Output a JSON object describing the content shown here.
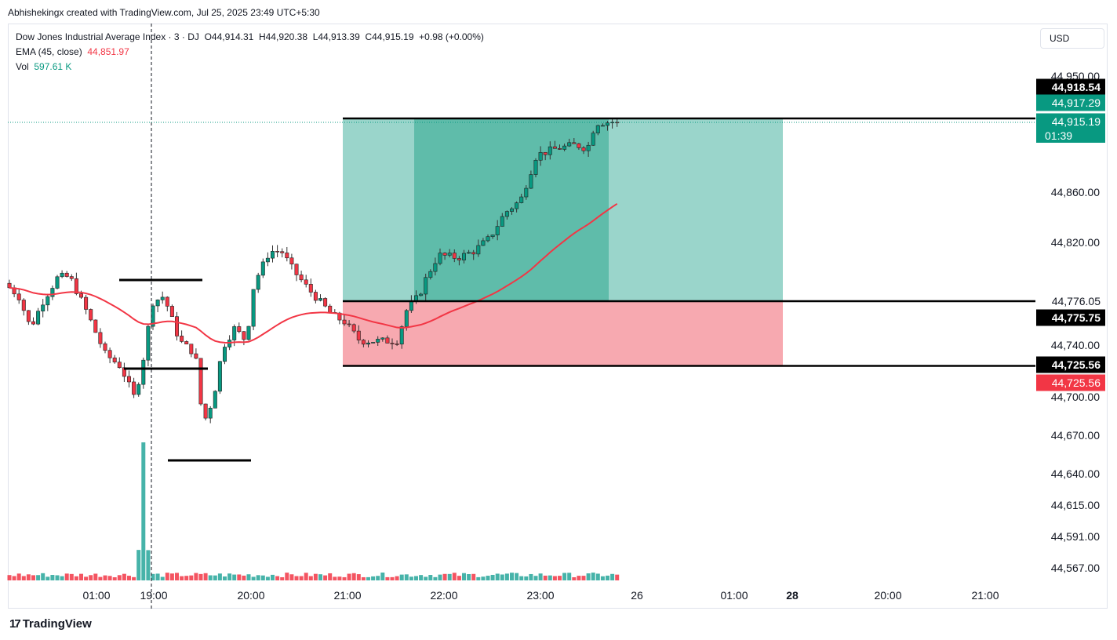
{
  "header": {
    "attribution": "Abhishekingx created with TradingView.com, Jul 25, 2025 23:49 UTC+5:30"
  },
  "legend": {
    "symbol": "Dow Jones Industrial Average Index · 3 · DJ",
    "open": "O44,914.31",
    "high": "H44,920.38",
    "low": "L44,913.39",
    "close": "C44,915.19",
    "change": "+0.98 (+0.00%)",
    "ema_label": "EMA (45, close)",
    "ema_value": "44,851.97",
    "vol_label": "Vol",
    "vol_value": "597.61 K"
  },
  "currency_button": "USD",
  "footer": {
    "logo": "17",
    "brand": "TradingView"
  },
  "colors": {
    "up": "#089981",
    "down": "#f23645",
    "ema": "#f23645",
    "profit_zone": "#9ad5cb",
    "profit_active": "#5fbcaa",
    "loss_zone": "#f7a9b0"
  },
  "chart_data": {
    "type": "candlestick",
    "title": "Dow Jones Industrial Average Index · 3 · DJ",
    "y_axis_labels": [
      "44,950.00",
      "44,860.00",
      "44,820.00",
      "44,740.00",
      "44,700.00",
      "44,670.00",
      "44,640.00",
      "44,615.00",
      "44,591.00",
      "44,567.00"
    ],
    "x_axis_labels": [
      "01:00",
      "19:00",
      "20:00",
      "21:00",
      "22:00",
      "23:00",
      "26",
      "01:00",
      "28",
      "20:00",
      "21:00"
    ],
    "price_badges": [
      {
        "text": "44,918.54",
        "style": "black"
      },
      {
        "text": "44,917.29",
        "style": "green"
      },
      {
        "text": "44,915.19",
        "style": "green"
      },
      {
        "text": "01:39",
        "style": "green-sub"
      },
      {
        "text": "44,776.05",
        "style": "plain"
      },
      {
        "text": "44,775.75",
        "style": "black"
      },
      {
        "text": "44,725.56",
        "style": "black"
      },
      {
        "text": "44,725.56",
        "style": "red"
      }
    ],
    "position": {
      "type": "long",
      "target": 44918.54,
      "entry": 44776.05,
      "stop": 44725.56
    },
    "ema_period": 45,
    "ema_last": 44851.97,
    "last_close": 44915.19,
    "volume_last": "597.61 K"
  }
}
